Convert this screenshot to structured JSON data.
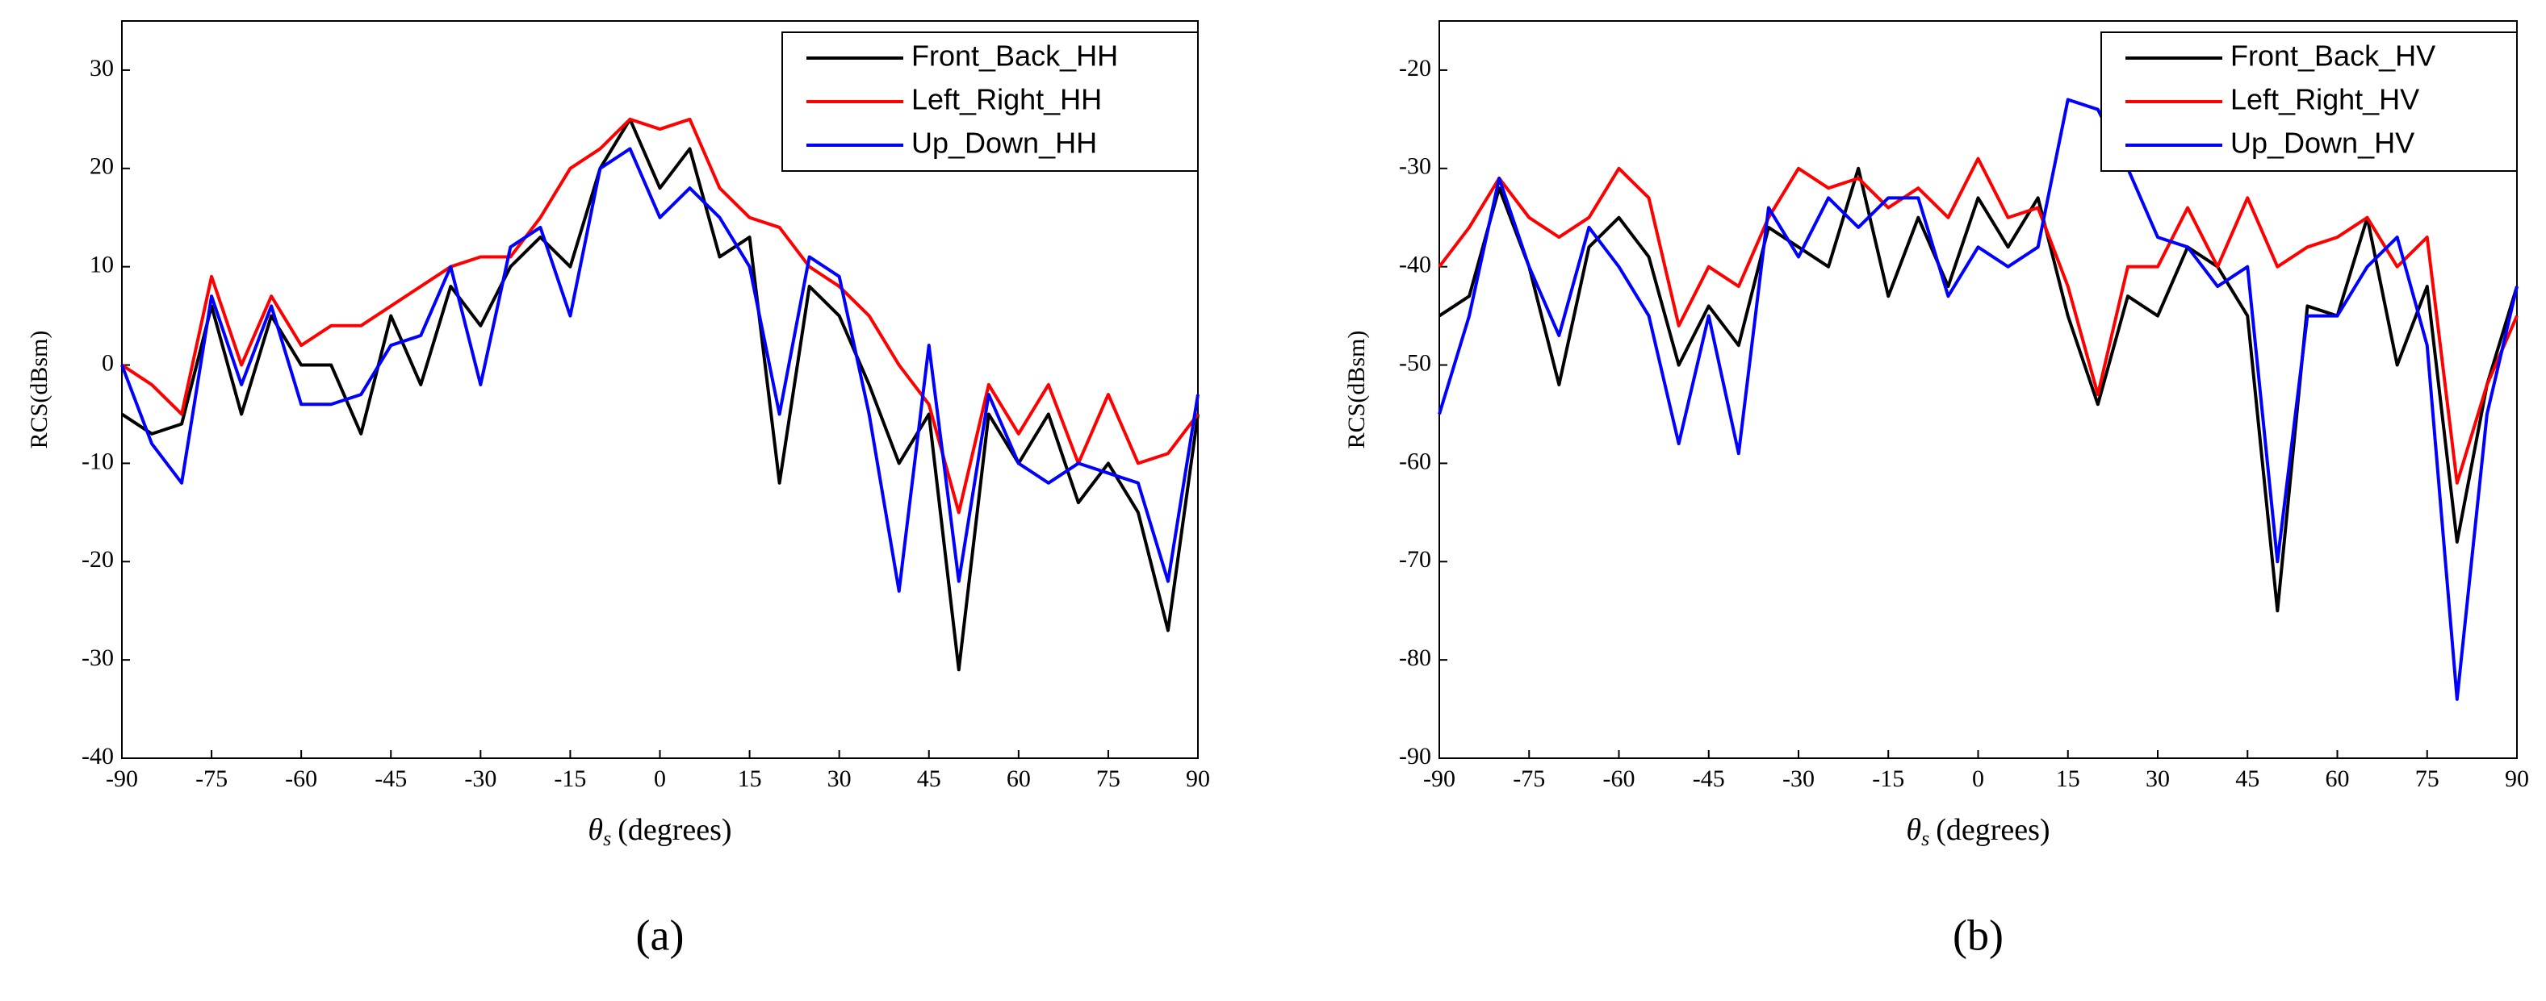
{
  "chart_data": [
    {
      "type": "line",
      "panel_label": "(a)",
      "y_label": "RCS(dBsm)",
      "x_label_symbol": "θ",
      "x_label_subscript": "s",
      "x_label": "(degrees)",
      "xlim": [
        -90,
        90
      ],
      "xticks": [
        -90,
        -75,
        -60,
        -45,
        -30,
        -15,
        0,
        15,
        30,
        45,
        60,
        75,
        90
      ],
      "ylim": [
        -40,
        35
      ],
      "yticks": [
        -40,
        -30,
        -20,
        -10,
        0,
        10,
        20,
        30
      ],
      "legend": "upper right",
      "x": [
        -90,
        -85,
        -80,
        -75,
        -70,
        -65,
        -60,
        -55,
        -50,
        -45,
        -40,
        -35,
        -30,
        -25,
        -20,
        -15,
        -10,
        -5,
        0,
        5,
        10,
        15,
        20,
        25,
        30,
        35,
        40,
        45,
        50,
        55,
        60,
        65,
        70,
        75,
        80,
        85,
        90
      ],
      "series": [
        {
          "name": "Front_Back_HH",
          "color": "#000000",
          "values": [
            -5,
            -7,
            -6,
            6,
            -5,
            5,
            0,
            0,
            -7,
            5,
            -2,
            8,
            4,
            10,
            13,
            10,
            20,
            25,
            18,
            22,
            11,
            13,
            -12,
            8,
            5,
            -2,
            -10,
            -5,
            -31,
            -5,
            -10,
            -5,
            -14,
            -10,
            -15,
            -27,
            -5
          ]
        },
        {
          "name": "Left_Right_HH",
          "color": "#ff0000",
          "values": [
            0,
            -2,
            -5,
            9,
            0,
            7,
            2,
            4,
            4,
            6,
            8,
            10,
            11,
            11,
            15,
            20,
            22,
            25,
            24,
            25,
            18,
            15,
            14,
            10,
            8,
            5,
            0,
            -4,
            -15,
            -2,
            -7,
            -2,
            -10,
            -3,
            -10,
            -9,
            -5
          ]
        },
        {
          "name": "Up_Down_HH",
          "color": "#0000ff",
          "values": [
            0,
            -8,
            -12,
            7,
            -2,
            6,
            -4,
            -4,
            -3,
            2,
            3,
            10,
            -2,
            12,
            14,
            5,
            20,
            22,
            15,
            18,
            15,
            10,
            -5,
            11,
            9,
            -5,
            -23,
            2,
            -22,
            -3,
            -10,
            -12,
            -10,
            -11,
            -12,
            -22,
            -3
          ]
        }
      ]
    },
    {
      "type": "line",
      "panel_label": "(b)",
      "y_label": "RCS(dBsm)",
      "x_label_symbol": "θ",
      "x_label_subscript": "s",
      "x_label": "(degrees)",
      "xlim": [
        -90,
        90
      ],
      "xticks": [
        -90,
        -75,
        -60,
        -45,
        -30,
        -15,
        0,
        15,
        30,
        45,
        60,
        75,
        90
      ],
      "ylim": [
        -90,
        -15
      ],
      "yticks": [
        -90,
        -80,
        -70,
        -60,
        -50,
        -40,
        -30,
        -20
      ],
      "legend": "upper right",
      "x": [
        -90,
        -85,
        -80,
        -75,
        -70,
        -65,
        -60,
        -55,
        -50,
        -45,
        -40,
        -35,
        -30,
        -25,
        -20,
        -15,
        -10,
        -5,
        0,
        5,
        10,
        15,
        20,
        25,
        30,
        35,
        40,
        45,
        50,
        55,
        60,
        65,
        70,
        75,
        80,
        85,
        90
      ],
      "series": [
        {
          "name": "Front_Back_HV",
          "color": "#000000",
          "values": [
            -45,
            -43,
            -32,
            -40,
            -52,
            -38,
            -35,
            -39,
            -50,
            -44,
            -48,
            -36,
            -38,
            -40,
            -30,
            -43,
            -35,
            -42,
            -33,
            -38,
            -33,
            -45,
            -54,
            -43,
            -45,
            -38,
            -40,
            -45,
            -75,
            -44,
            -45,
            -35,
            -50,
            -42,
            -68,
            -52,
            -42
          ]
        },
        {
          "name": "Left_Right_HV",
          "color": "#ff0000",
          "values": [
            -40,
            -36,
            -31,
            -35,
            -37,
            -35,
            -30,
            -33,
            -46,
            -40,
            -42,
            -35,
            -30,
            -32,
            -31,
            -34,
            -32,
            -35,
            -29,
            -35,
            -34,
            -42,
            -53,
            -40,
            -40,
            -34,
            -40,
            -33,
            -40,
            -38,
            -37,
            -35,
            -40,
            -37,
            -62,
            -52,
            -45
          ]
        },
        {
          "name": "Up_Down_HV",
          "color": "#0000ff",
          "values": [
            -55,
            -45,
            -31,
            -40,
            -47,
            -36,
            -40,
            -45,
            -58,
            -45,
            -59,
            -34,
            -39,
            -33,
            -36,
            -33,
            -33,
            -43,
            -38,
            -40,
            -38,
            -23,
            -24,
            -30,
            -37,
            -38,
            -42,
            -40,
            -70,
            -45,
            -45,
            -40,
            -37,
            -48,
            -84,
            -55,
            -42
          ]
        }
      ]
    }
  ]
}
